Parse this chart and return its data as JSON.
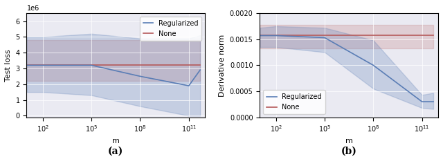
{
  "fig_width": 6.4,
  "fig_height": 2.43,
  "dpi": 100,
  "ax1": {
    "x_values": [
      10,
      100,
      100000,
      100000000,
      100000000000,
      500000000000
    ],
    "blue_mean": [
      3200000.0,
      3200000.0,
      3200000.0,
      2500000.0,
      1900000.0,
      2900000.0
    ],
    "blue_lower": [
      1500000.0,
      1500000.0,
      1300000.0,
      600000.0,
      0.0,
      0.0
    ],
    "blue_upper": [
      5000000.0,
      5000000.0,
      5200000.0,
      4900000.0,
      4900000.0,
      5100000.0
    ],
    "red_mean": [
      3200000.0,
      3200000.0,
      3200000.0,
      3200000.0,
      3200000.0,
      3200000.0
    ],
    "red_lower": [
      2200000.0,
      2200000.0,
      2200000.0,
      2200000.0,
      2200000.0,
      2200000.0
    ],
    "red_upper": [
      4800000.0,
      4800000.0,
      4800000.0,
      4800000.0,
      4800000.0,
      4800000.0
    ],
    "ylabel": "Test loss",
    "xlabel": "m",
    "ylim": [
      -100000.0,
      6500000.0
    ],
    "xlim_log": [
      10,
      1000000000000.0
    ],
    "label_a": "(a)",
    "blue_color": "#5a7db5",
    "red_color": "#b55a5a",
    "blue_fill_alpha": 0.25,
    "red_fill_alpha": 0.2
  },
  "ax2": {
    "x_values": [
      10,
      100,
      100000,
      100000000,
      100000000000,
      500000000000
    ],
    "blue_mean": [
      0.00157,
      0.00157,
      0.00153,
      0.001,
      0.0003,
      0.0003
    ],
    "blue_lower": [
      0.00135,
      0.00135,
      0.00125,
      0.00055,
      0.00018,
      0.00016
    ],
    "blue_upper": [
      0.00172,
      0.00175,
      0.00172,
      0.00148,
      0.00043,
      0.00047
    ],
    "red_mean": [
      0.00158,
      0.00158,
      0.00158,
      0.00158,
      0.00158,
      0.00158
    ],
    "red_lower": [
      0.00132,
      0.00132,
      0.00132,
      0.00132,
      0.00132,
      0.00132
    ],
    "red_upper": [
      0.00178,
      0.00178,
      0.00178,
      0.00178,
      0.00178,
      0.00178
    ],
    "ylabel": "Derivative norm",
    "xlabel": "m",
    "ylim": [
      0.0,
      0.002
    ],
    "xlim_log": [
      10,
      1000000000000.0
    ],
    "label_b": "(b)",
    "blue_color": "#5a7db5",
    "red_color": "#b55a5a",
    "blue_fill_alpha": 0.25,
    "red_fill_alpha": 0.2
  },
  "legend_blue": "Regularized",
  "legend_red": "None",
  "tick_labelsize": 7,
  "axis_labelsize": 8,
  "legend_fontsize": 7,
  "sublabel_fontsize": 10
}
